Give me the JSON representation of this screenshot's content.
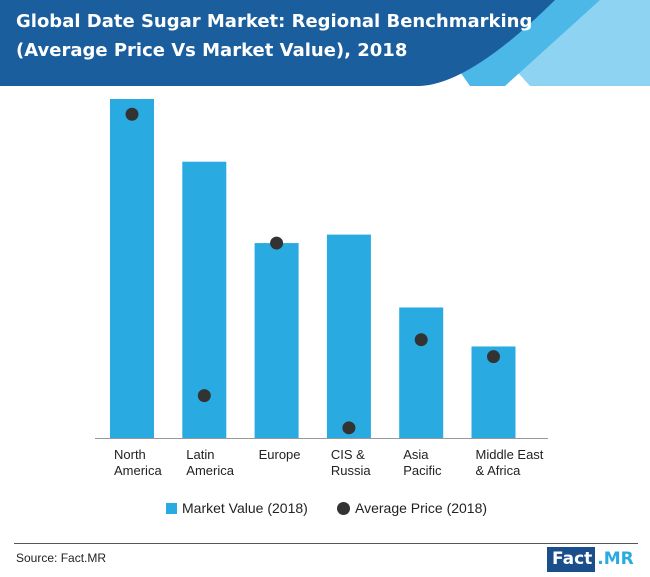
{
  "title": {
    "line1": "Global Date Sugar Market: Regional Benchmarking",
    "line2": "(Average Price Vs Market Value), 2018"
  },
  "colors": {
    "header": "#1b5e9e",
    "accent_light": "#8fd3f2",
    "accent_mid": "#4bb8e8",
    "bar": "#29abe2",
    "dot": "#333333",
    "axis": "#999999"
  },
  "chart_data": {
    "type": "bar",
    "categories": [
      "North America",
      "Latin America",
      "Europe",
      "CIS & Russia",
      "Asia Pacific",
      "Middle East & Africa"
    ],
    "category_labels": [
      [
        "North",
        "America"
      ],
      [
        "Latin",
        "America"
      ],
      [
        "Europe"
      ],
      [
        "CIS &",
        "Russia"
      ],
      [
        "Asia",
        "Pacific"
      ],
      [
        "Middle East",
        "& Africa"
      ]
    ],
    "series": [
      {
        "name": "Market Value (2018)",
        "type": "bar",
        "values": [
          100,
          81.5,
          57.5,
          60,
          38.5,
          27
        ]
      },
      {
        "name": "Average Price (2018)",
        "type": "scatter",
        "values": [
          95.5,
          12.5,
          57.5,
          3,
          29,
          24
        ]
      }
    ],
    "ylim": [
      0,
      100
    ],
    "grid": false,
    "legend": "bottom-center"
  },
  "source": "Source: Fact.MR",
  "logo": {
    "part1": "Fact",
    "part2": ".MR"
  }
}
